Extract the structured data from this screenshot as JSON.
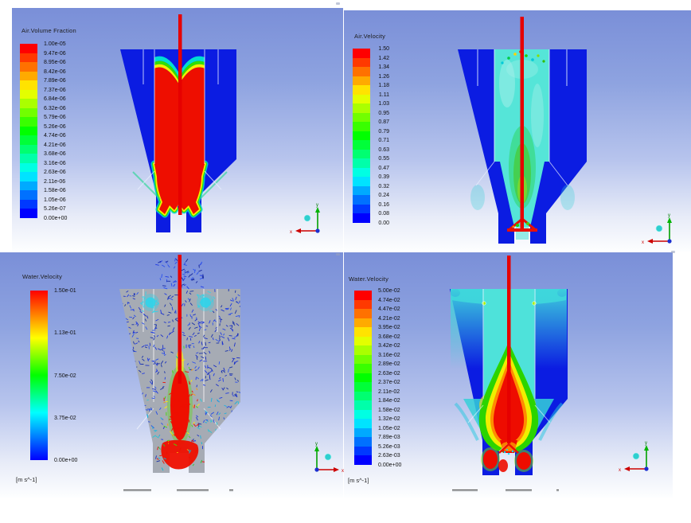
{
  "panels": [
    {
      "name": "air-volume-fraction",
      "title": "Air.Volume Fraction",
      "legend_type": "discrete",
      "unit": "",
      "labels": [
        "1.00e-05",
        "9.47e-06",
        "8.95e-06",
        "8.42e-06",
        "7.89e-06",
        "7.37e-06",
        "6.84e-06",
        "6.32e-06",
        "5.79e-06",
        "5.26e-06",
        "4.74e-06",
        "4.21e-06",
        "3.68e-06",
        "3.16e-06",
        "2.63e-06",
        "2.11e-06",
        "1.58e-06",
        "1.05e-06",
        "5.26e-07",
        "0.00e+00"
      ]
    },
    {
      "name": "air-velocity",
      "title": "Air.Velocity",
      "legend_type": "discrete",
      "unit": "",
      "labels": [
        "1.50",
        "1.42",
        "1.34",
        "1.26",
        "1.18",
        "1.11",
        "1.03",
        "0.95",
        "0.87",
        "0.79",
        "0.71",
        "0.63",
        "0.55",
        "0.47",
        "0.39",
        "0.32",
        "0.24",
        "0.16",
        "0.08",
        "0.00"
      ]
    },
    {
      "name": "water-velocity-vectors",
      "title": "Water.Velocity",
      "legend_type": "continuous",
      "unit": "[m s^-1]",
      "labels": [
        "1.50e-01",
        "1.13e-01",
        "7.50e-02",
        "3.75e-02",
        "0.00e+00"
      ]
    },
    {
      "name": "water-velocity-contour",
      "title": "Water.Velocity",
      "legend_type": "discrete",
      "unit": "[m s^-1]",
      "labels": [
        "5.00e-02",
        "4.74e-02",
        "4.47e-02",
        "4.21e-02",
        "3.95e-02",
        "3.68e-02",
        "3.42e-02",
        "3.16e-02",
        "2.89e-02",
        "2.63e-02",
        "2.37e-02",
        "2.11e-02",
        "1.84e-02",
        "1.58e-02",
        "1.32e-02",
        "1.05e-02",
        "7.89e-03",
        "5.26e-03",
        "2.63e-03",
        "0.00e+00"
      ]
    }
  ],
  "triad": {
    "x_label": "x",
    "y_label": "y"
  },
  "colors": {
    "scale": [
      "#ff0000",
      "#ff3900",
      "#ff7100",
      "#ffaa00",
      "#ffe300",
      "#e3ff00",
      "#aaff00",
      "#71ff00",
      "#39ff00",
      "#00ff00",
      "#00ff39",
      "#00ff71",
      "#00ffaa",
      "#00ffe3",
      "#00e3ff",
      "#00aaff",
      "#0071ff",
      "#0039ff",
      "#0000ff"
    ],
    "gradient_stops": [
      "#ff0000",
      "#ffff00",
      "#00ff00",
      "#00ffff",
      "#0000ff"
    ],
    "axis_x": "#cc0000",
    "axis_y": "#00a000",
    "axis_z_ball": "#2ecfcf",
    "field_blue": "#0b1ce2",
    "field_red": "#ee0e00",
    "field_cyan": "#55e5d8",
    "vessel_gray": "#a6abb4"
  },
  "chart_data": [
    {
      "type": "heatmap",
      "plot": "contour",
      "title": "Air.Volume Fraction",
      "colormap": "rainbow",
      "range": [
        0,
        1e-05
      ],
      "unit": "",
      "colorbar_ticks": [
        "1.00e-05",
        "9.47e-06",
        "8.95e-06",
        "8.42e-06",
        "7.89e-06",
        "7.37e-06",
        "6.84e-06",
        "6.32e-06",
        "5.79e-06",
        "5.26e-06",
        "4.74e-06",
        "4.21e-06",
        "3.68e-06",
        "3.16e-06",
        "2.63e-06",
        "2.11e-06",
        "1.58e-06",
        "1.05e-06",
        "5.26e-07",
        "0.00e+00"
      ]
    },
    {
      "type": "heatmap",
      "plot": "contour",
      "title": "Air.Velocity",
      "colormap": "rainbow",
      "range": [
        0,
        1.5
      ],
      "unit": "",
      "colorbar_ticks": [
        "1.50",
        "1.42",
        "1.34",
        "1.26",
        "1.18",
        "1.11",
        "1.03",
        "0.95",
        "0.87",
        "0.79",
        "0.71",
        "0.63",
        "0.55",
        "0.47",
        "0.39",
        "0.32",
        "0.24",
        "0.16",
        "0.08",
        "0.00"
      ]
    },
    {
      "type": "heatmap",
      "plot": "vector",
      "title": "Water.Velocity",
      "colormap": "rainbow",
      "range": [
        0,
        0.15
      ],
      "unit": "m s^-1",
      "colorbar_ticks": [
        "1.50e-01",
        "1.13e-01",
        "7.50e-02",
        "3.75e-02",
        "0.00e+00"
      ]
    },
    {
      "type": "heatmap",
      "plot": "contour",
      "title": "Water.Velocity",
      "colormap": "rainbow",
      "range": [
        0,
        0.05
      ],
      "unit": "m s^-1",
      "colorbar_ticks": [
        "5.00e-02",
        "4.74e-02",
        "4.47e-02",
        "4.21e-02",
        "3.95e-02",
        "3.68e-02",
        "3.42e-02",
        "3.16e-02",
        "2.89e-02",
        "2.63e-02",
        "2.37e-02",
        "2.11e-02",
        "1.84e-02",
        "1.58e-02",
        "1.32e-02",
        "1.05e-02",
        "7.89e-03",
        "5.26e-03",
        "2.63e-03",
        "0.00e+00"
      ]
    }
  ]
}
